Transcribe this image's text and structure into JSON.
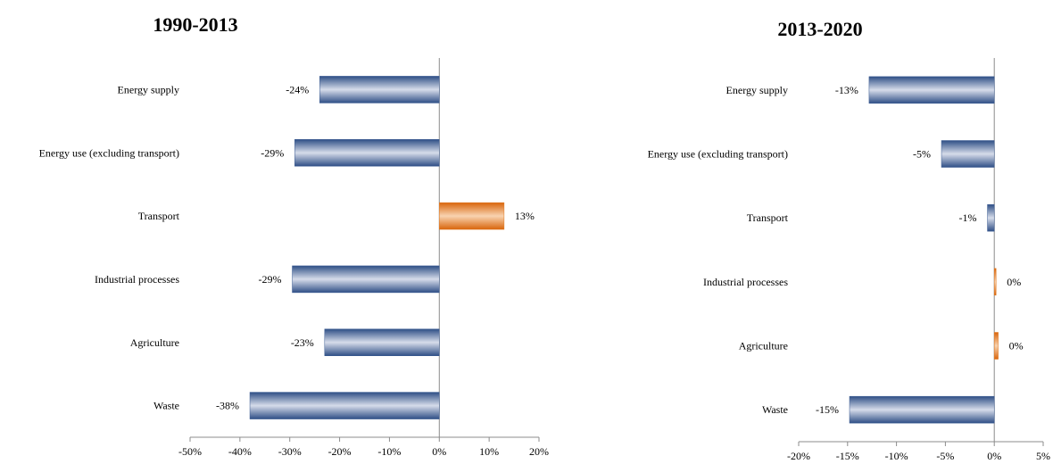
{
  "chart_data": [
    {
      "type": "bar",
      "orientation": "horizontal",
      "title": "1990-2013",
      "categories": [
        "Energy supply",
        "Energy use (excluding transport)",
        "Transport",
        "Industrial processes",
        "Agriculture",
        "Waste"
      ],
      "values": [
        -24,
        -29,
        13,
        -29.5,
        -23,
        -38
      ],
      "data_labels": [
        "-24%",
        "-29%",
        "13%",
        "-29%",
        "-23%",
        "-38%"
      ],
      "xlim": [
        -50,
        20
      ],
      "xticks": [
        -50,
        -40,
        -30,
        -20,
        -10,
        0,
        10,
        20
      ],
      "xtick_labels": [
        "-50%",
        "-40%",
        "-30%",
        "-20%",
        "-10%",
        "0%",
        "10%",
        "20%"
      ],
      "grid": false,
      "colors": {
        "negative": "#3a5a92",
        "positive": "#e07820"
      }
    },
    {
      "type": "bar",
      "orientation": "horizontal",
      "title": "2013-2020",
      "categories": [
        "Energy supply",
        "Energy use (excluding transport)",
        "Transport",
        "Industrial processes",
        "Agriculture",
        "Waste"
      ],
      "values": [
        -12.8,
        -5.4,
        -0.7,
        0.15,
        0.4,
        -14.8
      ],
      "data_labels": [
        "-13%",
        "-5%",
        "-1%",
        "0%",
        "0%",
        "-15%"
      ],
      "xlim": [
        -20,
        5
      ],
      "xticks": [
        -20,
        -15,
        -10,
        -5,
        0,
        5
      ],
      "xtick_labels": [
        "-20%",
        "-15%",
        "-10%",
        "-5%",
        "0%",
        "5%"
      ],
      "grid": false,
      "colors": {
        "negative": "#3a5a92",
        "positive": "#e07820"
      }
    }
  ]
}
